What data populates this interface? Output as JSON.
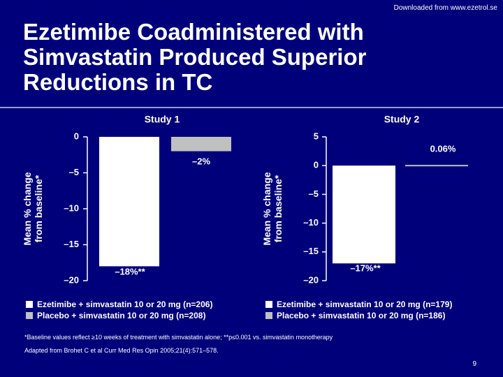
{
  "header": {
    "download_note": "Downloaded from www.ezetrol.se"
  },
  "slide": {
    "title_lines": [
      "Ezetimibe Coadministered with",
      "Simvastatin Produced Superior",
      "Reductions in TC"
    ],
    "footnote": "*Baseline values reflect ≥10 weeks of treatment with simvastatin alone; **p≤0.001 vs. simvastatin monotherapy",
    "source": "Adapted from Brohet C et al Curr Med Res Opin 2005;21(4):571–578.",
    "page_number": "9"
  },
  "colors": {
    "ezetimibe": "#ffffff",
    "placebo": "#c0c0c0",
    "background": "#00007a"
  },
  "chart_data": [
    {
      "type": "bar",
      "title": "Study 1",
      "ylabel": "Mean % change from baseline*",
      "ylim": [
        -20,
        0
      ],
      "yticks": [
        0,
        -5,
        -10,
        -15,
        -20
      ],
      "ytick_labels": [
        "0",
        "–5",
        "–10",
        "–15",
        "–20"
      ],
      "series": [
        {
          "name": "Ezetimibe + simvastatin 10 or 20 mg (n=206)",
          "values": [
            -18
          ],
          "label": "–18%**"
        },
        {
          "name": "Placebo + simvastatin 10 or 20 mg (n=208)",
          "values": [
            -2
          ],
          "label": "–2%"
        }
      ],
      "grid": false
    },
    {
      "type": "bar",
      "title": "Study 2",
      "ylabel": "Mean % change from baseline*",
      "ylim": [
        -20,
        5
      ],
      "yticks": [
        5,
        0,
        -5,
        -10,
        -15,
        -20
      ],
      "ytick_labels": [
        "5",
        "0",
        "–5",
        "–10",
        "–15",
        "–20"
      ],
      "series": [
        {
          "name": "Ezetimibe + simvastatin 10 or 20 mg (n=179)",
          "values": [
            -17
          ],
          "label": "–17%**"
        },
        {
          "name": "Placebo + simvastatin 10 or 20 mg (n=186)",
          "values": [
            0.06
          ],
          "label": "0.06%"
        }
      ],
      "grid": false
    }
  ]
}
